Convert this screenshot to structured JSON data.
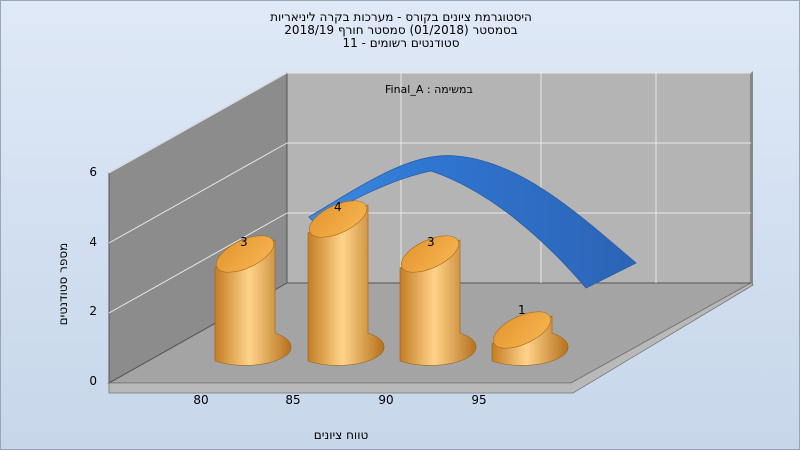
{
  "title_lines": [
    "היסטוגרמת ציונים בקורס - מערכות בקרה ליניאריות",
    "בסמסטר  (01/2018)  סמסטר חורף 2018/19",
    "סטודנטים רשומים - 11"
  ],
  "annotation": "Final_A : במשימה",
  "chart_data": {
    "type": "bar",
    "categories": [
      "80",
      "85",
      "90",
      "95"
    ],
    "values": [
      3,
      4,
      3,
      1
    ],
    "data_labels": [
      "3",
      "4",
      "3",
      "1"
    ],
    "xlabel": "טווח ציונים",
    "ylabel": "מספר סטודנטים",
    "yticks": [
      "0",
      "2",
      "4",
      "6"
    ],
    "ylim": [
      0,
      6
    ],
    "grid": true,
    "overlay": "normal-curve",
    "colors": {
      "bar": "#f2a63c",
      "curve": "#2f6ec0"
    }
  }
}
